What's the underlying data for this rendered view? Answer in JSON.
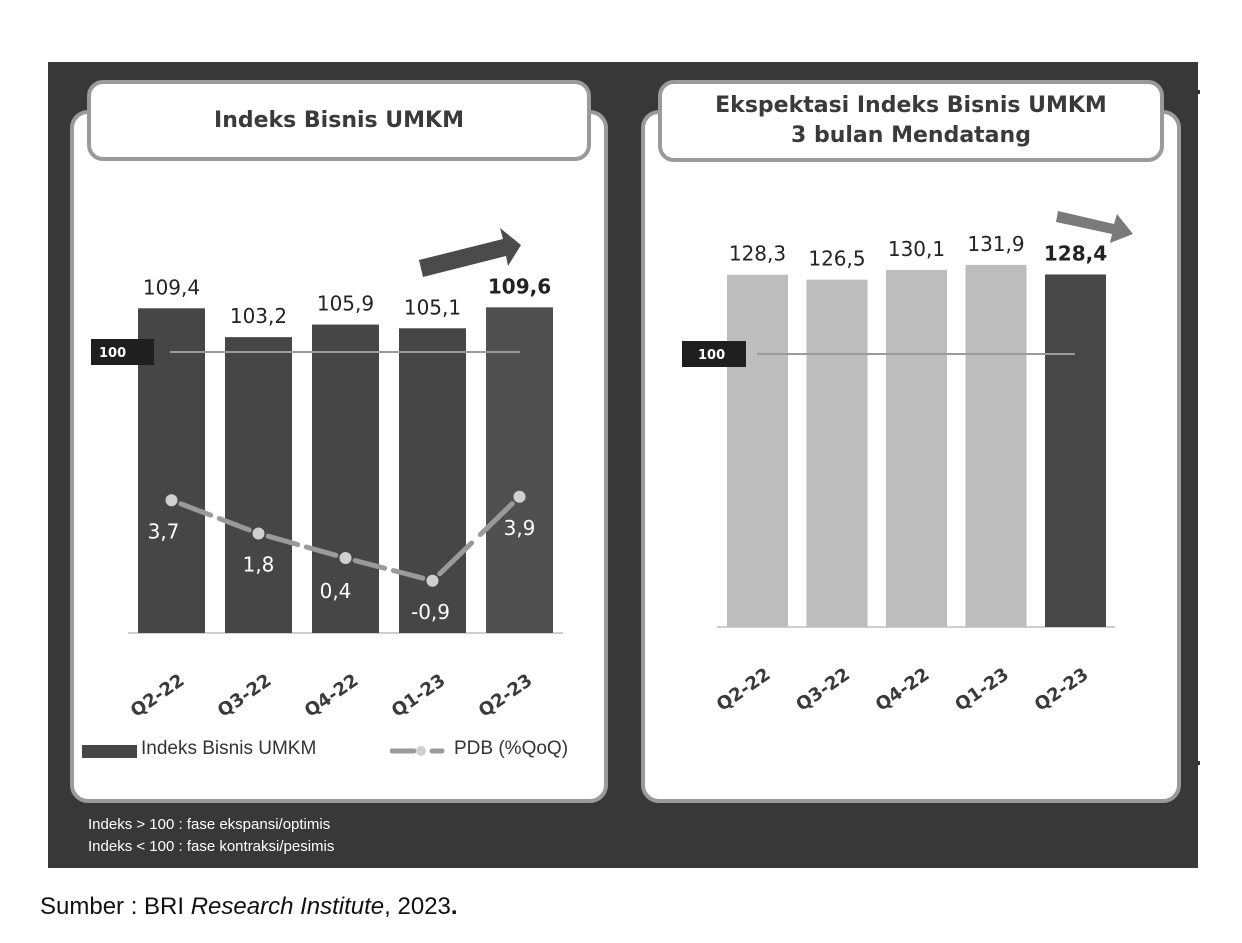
{
  "chart_data": [
    {
      "type": "bar",
      "title": "Indeks Bisnis UMKM",
      "categories": [
        "Q2-22",
        "Q3-22",
        "Q4-22",
        "Q1-23",
        "Q2-23"
      ],
      "series": [
        {
          "name": "Indeks Bisnis UMKM",
          "type": "bar",
          "values": [
            109.4,
            103.2,
            105.9,
            105.1,
            109.6
          ],
          "value_labels": [
            "109,4",
            "103,2",
            "105,9",
            "105,1",
            "109,6"
          ]
        },
        {
          "name": "PDB (%QoQ)",
          "type": "line",
          "values": [
            3.7,
            1.8,
            0.4,
            -0.9,
            3.9
          ],
          "value_labels": [
            "3,7",
            "1,8",
            "0,4",
            "-0,9",
            "3,9"
          ]
        }
      ],
      "reference_line": {
        "value": 100,
        "label": "100"
      },
      "highlight_last": true,
      "colors": {
        "bar": "#464646",
        "highlight_bar": "#505050",
        "line": "#9a9a9a",
        "marker": "#d0d0d0"
      }
    },
    {
      "type": "bar",
      "title": "Ekspektasi Indeks Bisnis UMKM 3 bulan Mendatang",
      "categories": [
        "Q2-22",
        "Q3-22",
        "Q4-22",
        "Q1-23",
        "Q2-23"
      ],
      "series": [
        {
          "name": "Ekspektasi Indeks Bisnis UMKM",
          "type": "bar",
          "values": [
            128.3,
            126.5,
            130.1,
            131.9,
            128.4
          ],
          "value_labels": [
            "128,3",
            "126,5",
            "130,1",
            "131,9",
            "128,4"
          ]
        }
      ],
      "reference_line": {
        "value": 100,
        "label": "100"
      },
      "highlight_last": true,
      "colors": {
        "bar": "#bdbdbd",
        "highlight_bar": "#474747"
      }
    }
  ],
  "titles": {
    "left": "Indeks Bisnis UMKM",
    "right_line1": "Ekspektasi Indeks Bisnis UMKM",
    "right_line2": "3 bulan Mendatang"
  },
  "legend": {
    "bar_label": "Indeks Bisnis UMKM",
    "line_label": "PDB (%QoQ)"
  },
  "notes": [
    "Indeks > 100 : fase ekspansi/optimis",
    "Indeks < 100 : fase kontraksi/pesimis"
  ],
  "source": {
    "prefix": "Sumber : BRI ",
    "italic": "Research Institute",
    "suffix": ", 2023",
    "dot": "."
  }
}
